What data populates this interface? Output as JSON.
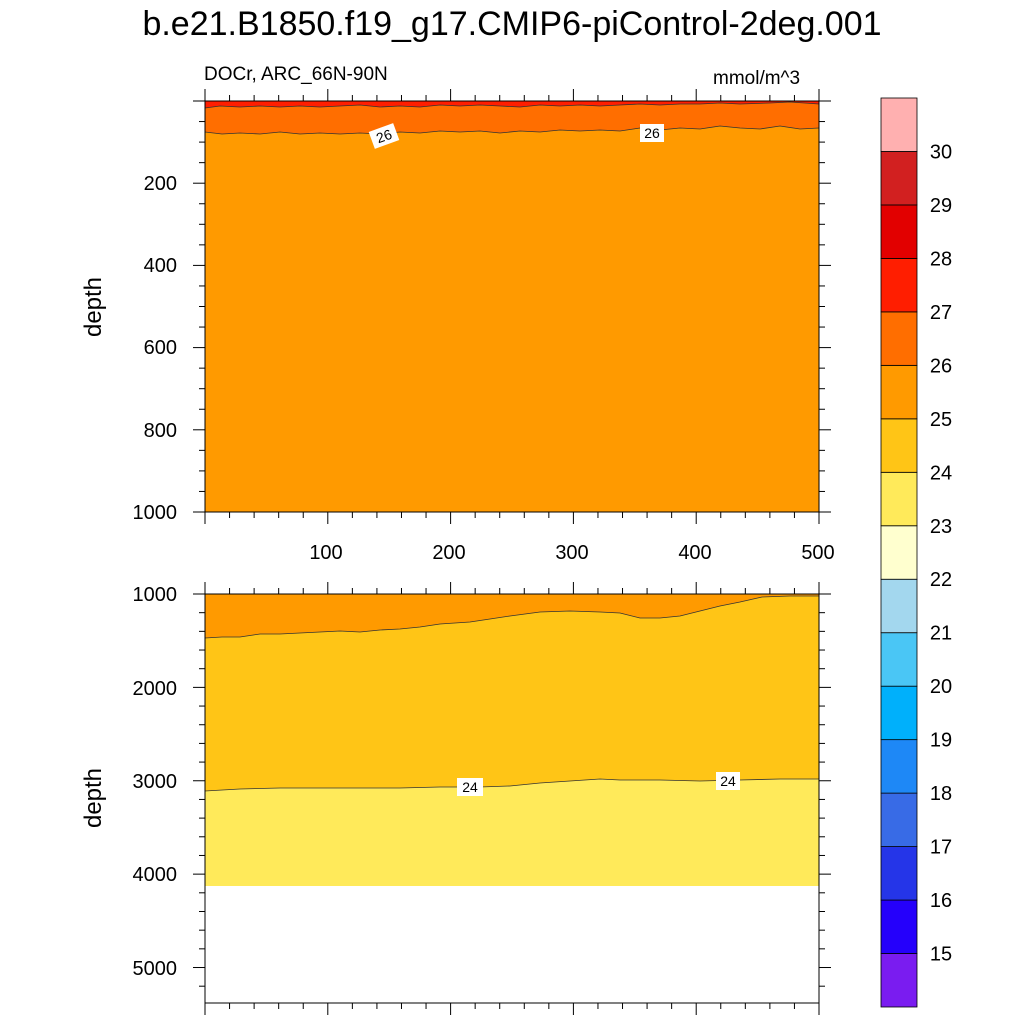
{
  "title": "b.e21.B1850.f19_g17.CMIP6-piControl-2deg.001",
  "subtitle_left": "DOCr, ARC_66N-90N",
  "subtitle_right": "mmol/m^3",
  "colors": {
    "c14": "#7a1cf0",
    "c15": "#2500fb",
    "c16": "#2535e8",
    "c17": "#386be6",
    "c18": "#1e88f6",
    "c19": "#00b0fb",
    "c20": "#4ac6f5",
    "c21": "#a3d7ee",
    "c22": "#ffffcf",
    "c23": "#ffea5a",
    "c24": "#ffc516",
    "c25": "#ff9a00",
    "c26": "#ff6e00",
    "c27": "#ff1e00",
    "c28": "#e20000",
    "c29": "#d22020",
    "c30": "#ffb0b0"
  },
  "chart_data": [
    {
      "type": "contour",
      "panel": "upper",
      "ylabel": "depth",
      "xlim": [
        0,
        500
      ],
      "ylim": [
        1000,
        0
      ],
      "xticks": [
        100,
        200,
        300,
        400,
        500
      ],
      "yticks": [
        200,
        400,
        600,
        800,
        1000
      ],
      "bands": [
        {
          "range": "27-28",
          "color": "#ff1e00",
          "top": 0,
          "bottom": 15
        },
        {
          "range": "26-27",
          "color": "#ff6e00",
          "top": 15,
          "bottom": 80
        },
        {
          "range": "25-26",
          "color": "#ff9a00",
          "top": 80,
          "bottom": 1000
        }
      ],
      "contour_labels": [
        {
          "text": "26",
          "x": 145,
          "y": 82,
          "angle": -20
        },
        {
          "text": "26",
          "x": 365,
          "y": 76,
          "angle": 0
        }
      ]
    },
    {
      "type": "contour",
      "panel": "lower",
      "ylabel": "depth",
      "xlim": [
        0,
        500
      ],
      "ylim": [
        5380,
        1000
      ],
      "yticks": [
        1000,
        2000,
        3000,
        4000,
        5000
      ],
      "bottom_of_data": 4120,
      "bands": [
        {
          "range": "25-26",
          "color": "#ff9a00",
          "top": 1000,
          "bottom": 1470
        },
        {
          "range": "24-25",
          "color": "#ffc516",
          "top": 1470,
          "bottom": 3100
        },
        {
          "range": "23-24",
          "color": "#ffea5a",
          "top": 3100,
          "bottom": 4120
        }
      ],
      "contour_labels": [
        {
          "text": "24",
          "x": 215,
          "y": 3070,
          "angle": 0
        },
        {
          "text": "24",
          "x": 425,
          "y": 3010,
          "angle": 0
        }
      ]
    }
  ],
  "colorbar": {
    "labels": [
      "15",
      "16",
      "17",
      "18",
      "19",
      "20",
      "21",
      "22",
      "23",
      "24",
      "25",
      "26",
      "27",
      "28",
      "29",
      "30"
    ],
    "colors_bottom_to_top": [
      "#7a1cf0",
      "#2500fb",
      "#2535e8",
      "#386be6",
      "#1e88f6",
      "#00b0fb",
      "#4ac6f5",
      "#a3d7ee",
      "#ffffcf",
      "#ffea5a",
      "#ffc516",
      "#ff9a00",
      "#ff6e00",
      "#ff1e00",
      "#e20000",
      "#d22020",
      "#ffb0b0"
    ]
  }
}
